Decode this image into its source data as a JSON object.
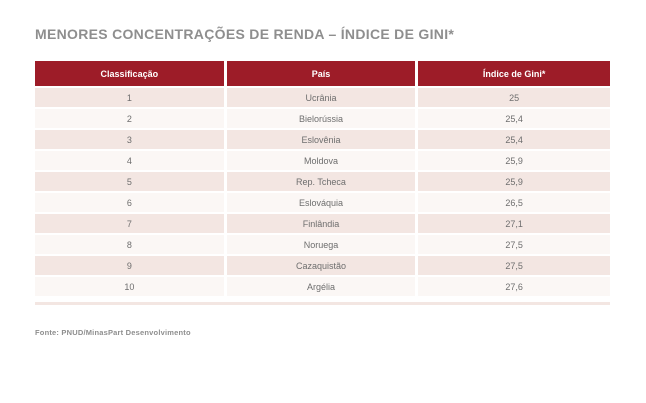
{
  "title": "MENORES CONCENTRAÇÕES DE RENDA – ÍNDICE DE GINI*",
  "source_note": "Fonte: PNUD/MinasPart Desenvolvimento",
  "table": {
    "columns": [
      "Classificação",
      "País",
      "Índice de Gini*"
    ],
    "rows": [
      {
        "rank": "1",
        "country": "Ucrânia",
        "gini": "25"
      },
      {
        "rank": "2",
        "country": "Bielorússia",
        "gini": "25,4"
      },
      {
        "rank": "3",
        "country": "Eslovênia",
        "gini": "25,4"
      },
      {
        "rank": "4",
        "country": "Moldova",
        "gini": "25,9"
      },
      {
        "rank": "5",
        "country": "Rep. Tcheca",
        "gini": "25,9"
      },
      {
        "rank": "6",
        "country": "Eslováquia",
        "gini": "26,5"
      },
      {
        "rank": "7",
        "country": "Finlândia",
        "gini": "27,1"
      },
      {
        "rank": "8",
        "country": "Noruega",
        "gini": "27,5"
      },
      {
        "rank": "9",
        "country": "Cazaquistão",
        "gini": "27,5"
      },
      {
        "rank": "10",
        "country": "Argélia",
        "gini": "27,6"
      }
    ]
  },
  "colors": {
    "header_bg": "#9d1c28",
    "header_text": "#ffffff",
    "row_odd_bg": "#f3e6e2",
    "row_even_bg": "#fbf7f5",
    "body_text": "#6e6e6e",
    "title_text": "#8e8e8e"
  },
  "chart_data": {
    "type": "table",
    "title": "MENORES CONCENTRAÇÕES DE RENDA – ÍNDICE DE GINI*",
    "columns": [
      "Classificação",
      "País",
      "Índice de Gini*"
    ],
    "rows": [
      [
        1,
        "Ucrânia",
        25
      ],
      [
        2,
        "Bielorússia",
        25.4
      ],
      [
        3,
        "Eslovênia",
        25.4
      ],
      [
        4,
        "Moldova",
        25.9
      ],
      [
        5,
        "Rep. Tcheca",
        25.9
      ],
      [
        6,
        "Eslováquia",
        26.5
      ],
      [
        7,
        "Finlândia",
        27.1
      ],
      [
        8,
        "Noruega",
        27.5
      ],
      [
        9,
        "Cazaquistão",
        27.5
      ],
      [
        10,
        "Argélia",
        27.6
      ]
    ],
    "source": "Fonte: PNUD/MinasPart Desenvolvimento"
  }
}
